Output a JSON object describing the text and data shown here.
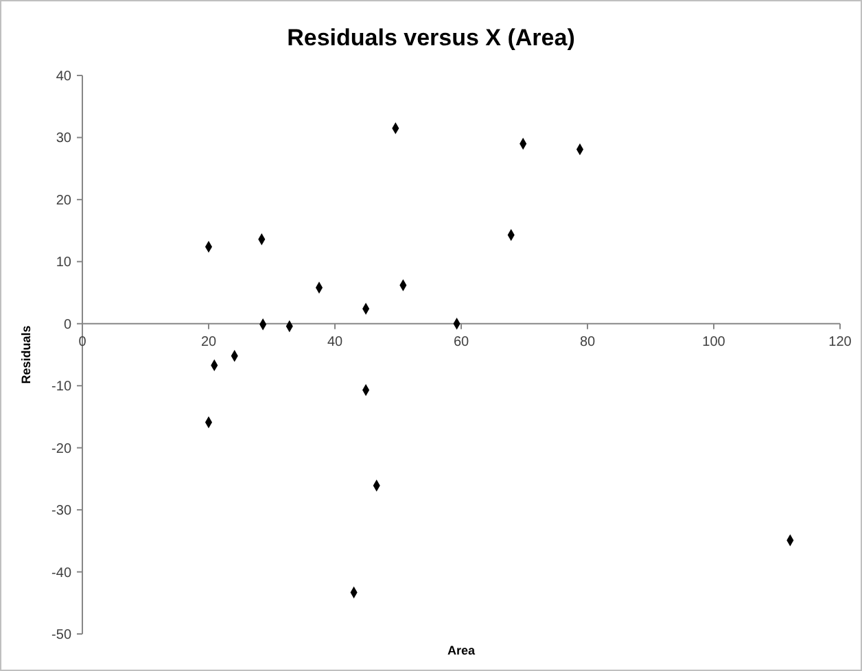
{
  "chart_data": {
    "type": "scatter",
    "title": "Residuals versus X (Area)",
    "xlabel": "Area",
    "ylabel": "Residuals",
    "marker": "diamond",
    "grid": false,
    "xlim": [
      0,
      120
    ],
    "xticks": [
      0,
      20,
      40,
      60,
      80,
      100,
      120
    ],
    "ylim": [
      -50,
      40
    ],
    "yticks": [
      -50,
      -40,
      -30,
      -20,
      -10,
      0,
      10,
      20,
      30,
      40
    ],
    "series": [
      {
        "color": "#000000",
        "x": [
          20.0,
          28.4,
          37.5,
          50.8,
          44.9,
          28.6,
          32.8,
          20.9,
          24.1,
          44.9,
          20.0,
          67.9,
          59.3,
          46.6,
          43.0,
          112.1,
          49.6,
          69.8,
          78.8
        ],
        "values": [
          12.4,
          13.6,
          5.8,
          6.2,
          2.4,
          -0.1,
          -0.4,
          -6.7,
          -5.2,
          -10.7,
          -15.9,
          14.3,
          0,
          -26.1,
          -43.3,
          -34.9,
          31.5,
          29.0,
          28.1
        ]
      }
    ]
  }
}
